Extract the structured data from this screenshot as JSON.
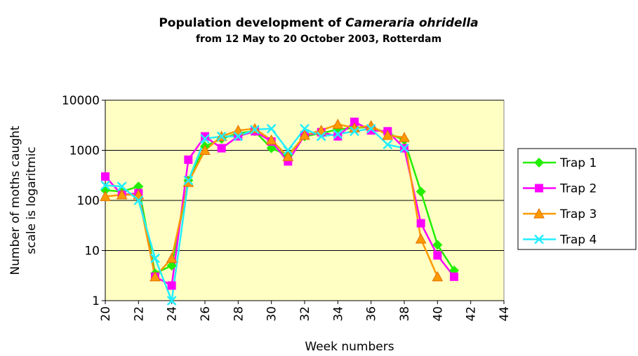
{
  "chart_data": {
    "type": "line",
    "title": [
      "Population development of",
      "Cameraria ohridella"
    ],
    "subtitle": "from 12 May to 20 October 2003, Rotterdam",
    "y_label": [
      "Number of moths caught",
      "scale is logaritmic"
    ],
    "x_label": "Week numbers",
    "x": [
      20,
      21,
      22,
      23,
      24,
      25,
      26,
      27,
      28,
      29,
      30,
      31,
      32,
      33,
      34,
      35,
      36,
      37,
      38,
      39,
      40,
      41
    ],
    "series": [
      {
        "name": "Trap 1",
        "color": "#22ee00",
        "marker": "diamond",
        "values": [
          160,
          150,
          190,
          3.5,
          5,
          250,
          1200,
          1700,
          2200,
          2400,
          1100,
          800,
          1900,
          2200,
          2600,
          2800,
          2900,
          2200,
          1600,
          150,
          13,
          4
        ]
      },
      {
        "name": "Trap 2",
        "color": "#ff00ff",
        "marker": "square",
        "values": [
          300,
          130,
          140,
          3,
          2,
          650,
          1900,
          1100,
          1900,
          2400,
          1500,
          600,
          2000,
          2300,
          1900,
          3700,
          2500,
          2400,
          1100,
          35,
          8,
          3
        ]
      },
      {
        "name": "Trap 3",
        "color": "#ff9900",
        "marker": "triangle",
        "values": [
          120,
          130,
          130,
          3,
          7,
          230,
          1000,
          1900,
          2500,
          2700,
          1600,
          750,
          2000,
          2500,
          3300,
          2800,
          3100,
          2000,
          1800,
          17,
          3,
          null
        ]
      },
      {
        "name": "Trap 4",
        "color": "#22eeff",
        "marker": "x",
        "values": [
          200,
          190,
          100,
          7,
          1,
          250,
          1700,
          1900,
          1900,
          2600,
          2700,
          1000,
          2700,
          1900,
          2100,
          2400,
          2700,
          1300,
          1100,
          null,
          null,
          null
        ]
      }
    ],
    "xlim": [
      20,
      44
    ],
    "xticks": [
      20,
      22,
      24,
      26,
      28,
      30,
      32,
      34,
      36,
      38,
      40,
      42,
      44
    ],
    "ylim": [
      1,
      10000
    ],
    "yticks": [
      1,
      10,
      100,
      1000,
      10000
    ],
    "log_y": true,
    "grid": true,
    "plot_background": "#ffffc4",
    "legend": "right"
  }
}
